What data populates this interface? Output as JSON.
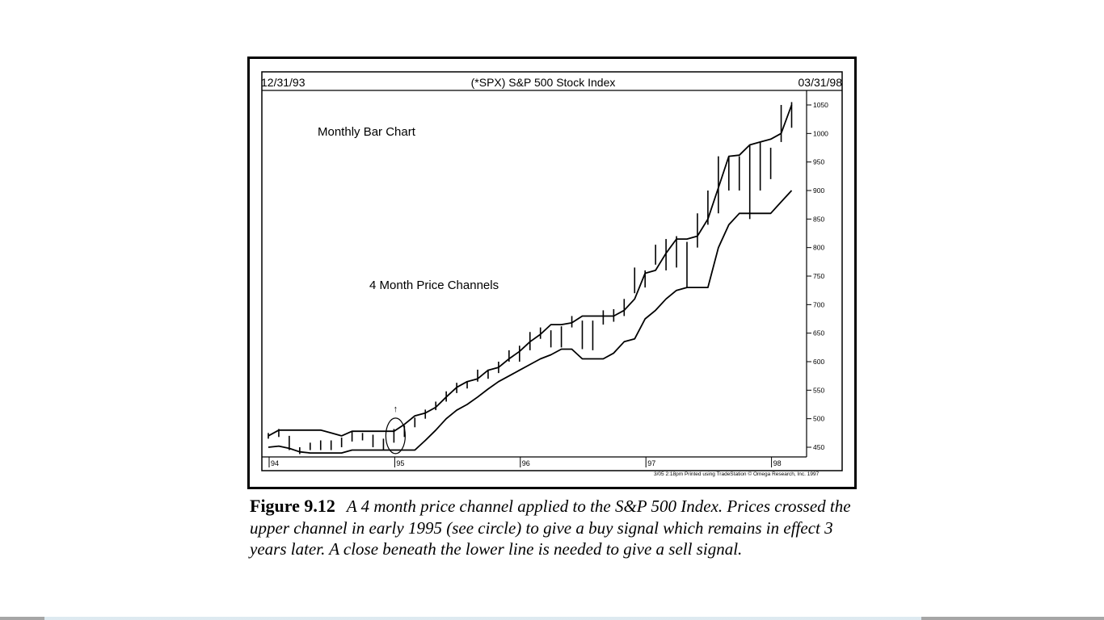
{
  "caption": {
    "label": "Figure 9.12",
    "text": "A 4 month price channel applied to the S&P 500 Index. Prices crossed the upper channel in early 1995 (see circle) to give a buy signal which remains in effect 3 years later. A close beneath the lower line is needed to give a sell signal."
  },
  "chart_data": {
    "type": "line",
    "title": "(*SPX) S&P 500 Stock Index",
    "start_date_label": "12/31/93",
    "end_date_label": "03/31/98",
    "annotations": [
      "Monthly Bar Chart",
      "4 Month Price Channels"
    ],
    "footer": "3/05  2:18pm  Printed using TradeStation © Omega Research, Inc. 1997",
    "signal_marker": "↑",
    "y_ticks": [
      "1050",
      "1000",
      "950",
      "900",
      "850",
      "800",
      "750",
      "700",
      "650",
      "600",
      "550",
      "500",
      "450"
    ],
    "x_ticks": [
      {
        "label": "94",
        "month": 0
      },
      {
        "label": "95",
        "month": 12
      },
      {
        "label": "96",
        "month": 24
      },
      {
        "label": "97",
        "month": 36
      },
      {
        "label": "98",
        "month": 48
      }
    ],
    "ylim": [
      425,
      1070
    ],
    "grid": false,
    "bars": [
      {
        "month": 0,
        "high": 475,
        "low": 465
      },
      {
        "month": 1,
        "high": 482,
        "low": 468
      },
      {
        "month": 2,
        "high": 470,
        "low": 445
      },
      {
        "month": 3,
        "high": 450,
        "low": 438
      },
      {
        "month": 4,
        "high": 458,
        "low": 445
      },
      {
        "month": 5,
        "high": 462,
        "low": 445
      },
      {
        "month": 6,
        "high": 462,
        "low": 445
      },
      {
        "month": 7,
        "high": 467,
        "low": 450
      },
      {
        "month": 8,
        "high": 477,
        "low": 460
      },
      {
        "month": 9,
        "high": 475,
        "low": 462
      },
      {
        "month": 10,
        "high": 472,
        "low": 450
      },
      {
        "month": 11,
        "high": 465,
        "low": 445
      },
      {
        "month": 12,
        "high": 482,
        "low": 458
      },
      {
        "month": 13,
        "high": 488,
        "low": 468
      },
      {
        "month": 14,
        "high": 502,
        "low": 485
      },
      {
        "month": 15,
        "high": 516,
        "low": 500
      },
      {
        "month": 16,
        "high": 530,
        "low": 515
      },
      {
        "month": 17,
        "high": 548,
        "low": 530
      },
      {
        "month": 18,
        "high": 563,
        "low": 545
      },
      {
        "month": 19,
        "high": 566,
        "low": 553
      },
      {
        "month": 20,
        "high": 586,
        "low": 565
      },
      {
        "month": 21,
        "high": 586,
        "low": 570
      },
      {
        "month": 22,
        "high": 600,
        "low": 580
      },
      {
        "month": 23,
        "high": 620,
        "low": 600
      },
      {
        "month": 24,
        "high": 628,
        "low": 600
      },
      {
        "month": 25,
        "high": 652,
        "low": 620
      },
      {
        "month": 26,
        "high": 660,
        "low": 640
      },
      {
        "month": 27,
        "high": 655,
        "low": 625
      },
      {
        "month": 28,
        "high": 662,
        "low": 625
      },
      {
        "month": 29,
        "high": 680,
        "low": 660
      },
      {
        "month": 30,
        "high": 672,
        "low": 622
      },
      {
        "month": 31,
        "high": 672,
        "low": 620
      },
      {
        "month": 32,
        "high": 690,
        "low": 665
      },
      {
        "month": 33,
        "high": 692,
        "low": 670
      },
      {
        "month": 34,
        "high": 710,
        "low": 680
      },
      {
        "month": 35,
        "high": 765,
        "low": 720
      },
      {
        "month": 36,
        "high": 760,
        "low": 730
      },
      {
        "month": 37,
        "high": 805,
        "low": 770
      },
      {
        "month": 38,
        "high": 815,
        "low": 760
      },
      {
        "month": 39,
        "high": 820,
        "low": 765
      },
      {
        "month": 40,
        "high": 810,
        "low": 730
      },
      {
        "month": 41,
        "high": 860,
        "low": 800
      },
      {
        "month": 42,
        "high": 900,
        "low": 840
      },
      {
        "month": 43,
        "high": 960,
        "low": 860
      },
      {
        "month": 44,
        "high": 960,
        "low": 900
      },
      {
        "month": 45,
        "high": 960,
        "low": 900
      },
      {
        "month": 46,
        "high": 980,
        "low": 850
      },
      {
        "month": 47,
        "high": 985,
        "low": 900
      },
      {
        "month": 48,
        "high": 975,
        "low": 920
      },
      {
        "month": 49,
        "high": 1050,
        "low": 985
      },
      {
        "month": 50,
        "high": 1055,
        "low": 1010
      }
    ],
    "series": [
      {
        "points": [
          [
            0,
            470
          ],
          [
            1,
            480
          ],
          [
            4,
            480
          ],
          [
            5,
            480
          ],
          [
            6,
            475
          ],
          [
            7,
            470
          ],
          [
            8,
            478
          ],
          [
            11,
            478
          ],
          [
            12,
            478
          ],
          [
            13,
            490
          ],
          [
            14,
            505
          ],
          [
            15,
            510
          ],
          [
            16,
            520
          ],
          [
            17,
            538
          ],
          [
            18,
            555
          ],
          [
            19,
            565
          ],
          [
            20,
            570
          ],
          [
            21,
            585
          ],
          [
            22,
            590
          ],
          [
            23,
            605
          ],
          [
            24,
            618
          ],
          [
            25,
            635
          ],
          [
            26,
            648
          ],
          [
            27,
            665
          ],
          [
            28,
            665
          ],
          [
            29,
            668
          ],
          [
            30,
            680
          ],
          [
            31,
            680
          ],
          [
            32,
            680
          ],
          [
            33,
            680
          ],
          [
            34,
            690
          ],
          [
            35,
            710
          ],
          [
            36,
            755
          ],
          [
            37,
            760
          ],
          [
            38,
            790
          ],
          [
            39,
            815
          ],
          [
            40,
            815
          ],
          [
            41,
            820
          ],
          [
            42,
            850
          ],
          [
            43,
            905
          ],
          [
            44,
            960
          ],
          [
            45,
            962
          ],
          [
            46,
            980
          ],
          [
            47,
            985
          ],
          [
            48,
            990
          ],
          [
            49,
            1000
          ],
          [
            50,
            1050
          ]
        ]
      },
      {
        "points": [
          [
            0,
            450
          ],
          [
            1,
            452
          ],
          [
            2,
            448
          ],
          [
            3,
            442
          ],
          [
            4,
            440
          ],
          [
            7,
            440
          ],
          [
            8,
            445
          ],
          [
            11,
            445
          ],
          [
            12,
            445
          ],
          [
            13,
            445
          ],
          [
            14,
            445
          ],
          [
            15,
            462
          ],
          [
            16,
            480
          ],
          [
            17,
            500
          ],
          [
            18,
            515
          ],
          [
            19,
            525
          ],
          [
            20,
            538
          ],
          [
            21,
            552
          ],
          [
            22,
            565
          ],
          [
            23,
            575
          ],
          [
            24,
            585
          ],
          [
            25,
            595
          ],
          [
            26,
            605
          ],
          [
            27,
            612
          ],
          [
            28,
            622
          ],
          [
            29,
            622
          ],
          [
            30,
            605
          ],
          [
            31,
            605
          ],
          [
            32,
            605
          ],
          [
            33,
            615
          ],
          [
            34,
            635
          ],
          [
            35,
            640
          ],
          [
            36,
            675
          ],
          [
            37,
            690
          ],
          [
            38,
            710
          ],
          [
            39,
            725
          ],
          [
            40,
            730
          ],
          [
            41,
            730
          ],
          [
            42,
            730
          ],
          [
            43,
            800
          ],
          [
            44,
            840
          ],
          [
            45,
            860
          ],
          [
            46,
            860
          ],
          [
            47,
            860
          ],
          [
            48,
            860
          ],
          [
            49,
            880
          ],
          [
            50,
            900
          ]
        ]
      }
    ],
    "signal_circle": {
      "month": 12,
      "value": 470
    }
  }
}
